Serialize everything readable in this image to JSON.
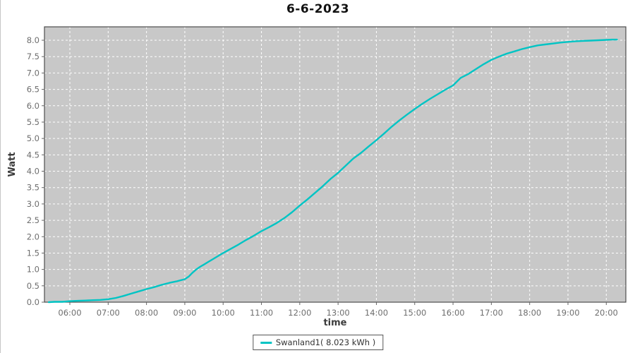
{
  "chart_data": {
    "type": "line",
    "title": "6-6-2023",
    "xlabel": "time",
    "ylabel": "Watt",
    "grid": {
      "style": "dashed",
      "color": "#ffffff",
      "on": true
    },
    "plot_background": "#c8c8c8",
    "plot_outline": "#4d4d4d",
    "xlim_hours": [
      5.337,
      20.51
    ],
    "ylim": [
      0,
      8.41
    ],
    "x_axis": {
      "label": "time",
      "ticks": [
        {
          "label": "06:00",
          "hour": 6
        },
        {
          "label": "07:00",
          "hour": 7
        },
        {
          "label": "08:00",
          "hour": 8
        },
        {
          "label": "09:00",
          "hour": 9
        },
        {
          "label": "10:00",
          "hour": 10
        },
        {
          "label": "11:00",
          "hour": 11
        },
        {
          "label": "12:00",
          "hour": 12
        },
        {
          "label": "13:00",
          "hour": 13
        },
        {
          "label": "14:00",
          "hour": 14
        },
        {
          "label": "15:00",
          "hour": 15
        },
        {
          "label": "16:00",
          "hour": 16
        },
        {
          "label": "17:00",
          "hour": 17
        },
        {
          "label": "18:00",
          "hour": 18
        },
        {
          "label": "19:00",
          "hour": 19
        },
        {
          "label": "20:00",
          "hour": 20
        }
      ]
    },
    "y_axis": {
      "label": "Watt",
      "ticks": [
        {
          "label": "0.0",
          "value": 0.0
        },
        {
          "label": "0.5",
          "value": 0.5
        },
        {
          "label": "1.0",
          "value": 1.0
        },
        {
          "label": "1.5",
          "value": 1.5
        },
        {
          "label": "2.0",
          "value": 2.0
        },
        {
          "label": "2.5",
          "value": 2.5
        },
        {
          "label": "3.0",
          "value": 3.0
        },
        {
          "label": "3.5",
          "value": 3.5
        },
        {
          "label": "4.0",
          "value": 4.0
        },
        {
          "label": "4.5",
          "value": 4.5
        },
        {
          "label": "5.0",
          "value": 5.0
        },
        {
          "label": "5.5",
          "value": 5.5
        },
        {
          "label": "6.0",
          "value": 6.0
        },
        {
          "label": "6.5",
          "value": 6.5
        },
        {
          "label": "7.0",
          "value": 7.0
        },
        {
          "label": "7.5",
          "value": 7.5
        },
        {
          "label": "8.0",
          "value": 8.0
        }
      ]
    },
    "legend": {
      "position": "bottom-center",
      "entries": [
        {
          "label": "Swanland1( 8.023 kWh )",
          "color": "#00c4c4"
        }
      ]
    },
    "series": [
      {
        "name": "Swanland1",
        "total_kwh": "8.023",
        "color": "#00c4c4",
        "points": [
          [
            5.45,
            0.0
          ],
          [
            5.6,
            0.01
          ],
          [
            5.8,
            0.01
          ],
          [
            6.0,
            0.03
          ],
          [
            6.2,
            0.04
          ],
          [
            6.4,
            0.05
          ],
          [
            6.6,
            0.06
          ],
          [
            6.8,
            0.07
          ],
          [
            7.0,
            0.09
          ],
          [
            7.2,
            0.13
          ],
          [
            7.4,
            0.19
          ],
          [
            7.6,
            0.26
          ],
          [
            7.8,
            0.33
          ],
          [
            8.0,
            0.4
          ],
          [
            8.2,
            0.46
          ],
          [
            8.4,
            0.53
          ],
          [
            8.6,
            0.59
          ],
          [
            8.8,
            0.64
          ],
          [
            9.0,
            0.7
          ],
          [
            9.1,
            0.78
          ],
          [
            9.2,
            0.9
          ],
          [
            9.3,
            1.0
          ],
          [
            9.4,
            1.08
          ],
          [
            9.5,
            1.15
          ],
          [
            9.6,
            1.22
          ],
          [
            9.8,
            1.36
          ],
          [
            10.0,
            1.5
          ],
          [
            10.2,
            1.63
          ],
          [
            10.4,
            1.76
          ],
          [
            10.6,
            1.9
          ],
          [
            10.8,
            2.03
          ],
          [
            11.0,
            2.17
          ],
          [
            11.2,
            2.29
          ],
          [
            11.4,
            2.42
          ],
          [
            11.6,
            2.57
          ],
          [
            11.8,
            2.75
          ],
          [
            12.0,
            2.95
          ],
          [
            12.2,
            3.14
          ],
          [
            12.4,
            3.34
          ],
          [
            12.6,
            3.54
          ],
          [
            12.8,
            3.76
          ],
          [
            13.0,
            3.95
          ],
          [
            13.2,
            4.17
          ],
          [
            13.4,
            4.39
          ],
          [
            13.6,
            4.56
          ],
          [
            13.8,
            4.76
          ],
          [
            14.0,
            4.95
          ],
          [
            14.2,
            5.15
          ],
          [
            14.4,
            5.36
          ],
          [
            14.6,
            5.55
          ],
          [
            14.8,
            5.73
          ],
          [
            15.0,
            5.9
          ],
          [
            15.2,
            6.06
          ],
          [
            15.4,
            6.21
          ],
          [
            15.6,
            6.35
          ],
          [
            15.8,
            6.49
          ],
          [
            16.0,
            6.62
          ],
          [
            16.2,
            6.85
          ],
          [
            16.4,
            6.97
          ],
          [
            16.6,
            7.12
          ],
          [
            16.8,
            7.27
          ],
          [
            17.0,
            7.4
          ],
          [
            17.2,
            7.5
          ],
          [
            17.4,
            7.59
          ],
          [
            17.6,
            7.66
          ],
          [
            17.8,
            7.73
          ],
          [
            18.0,
            7.79
          ],
          [
            18.2,
            7.84
          ],
          [
            18.4,
            7.87
          ],
          [
            18.6,
            7.9
          ],
          [
            18.8,
            7.93
          ],
          [
            19.0,
            7.95
          ],
          [
            19.2,
            7.97
          ],
          [
            19.4,
            7.98
          ],
          [
            19.6,
            7.99
          ],
          [
            19.8,
            8.0
          ],
          [
            20.0,
            8.01
          ],
          [
            20.15,
            8.02
          ],
          [
            20.28,
            8.02
          ]
        ]
      }
    ]
  }
}
